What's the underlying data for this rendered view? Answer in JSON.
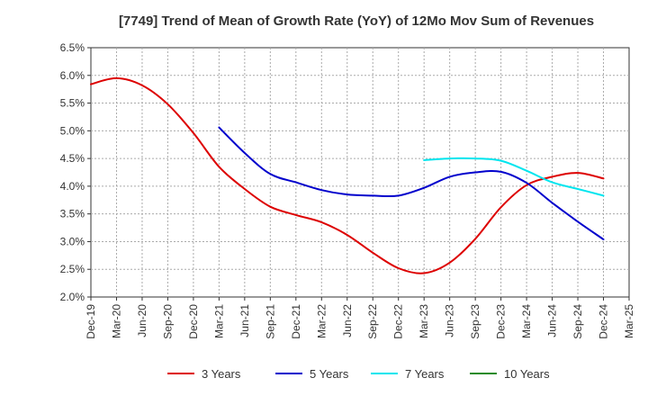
{
  "chart_data": {
    "type": "line",
    "title": "[7749]  Trend of Mean of Growth Rate (YoY) of 12Mo Mov Sum of Revenues",
    "xlabel": "",
    "ylabel": "",
    "ylim": [
      2.0,
      6.5
    ],
    "y_ticks": [
      "2.0%",
      "2.5%",
      "3.0%",
      "3.5%",
      "4.0%",
      "4.5%",
      "5.0%",
      "5.5%",
      "6.0%",
      "6.5%"
    ],
    "y_tick_values": [
      2.0,
      2.5,
      3.0,
      3.5,
      4.0,
      4.5,
      5.0,
      5.5,
      6.0,
      6.5
    ],
    "x_ticks": [
      "Dec-19",
      "Mar-20",
      "Jun-20",
      "Sep-20",
      "Dec-20",
      "Mar-21",
      "Jun-21",
      "Sep-21",
      "Dec-21",
      "Mar-22",
      "Jun-22",
      "Sep-22",
      "Dec-22",
      "Mar-23",
      "Jun-23",
      "Sep-23",
      "Dec-23",
      "Mar-24",
      "Jun-24",
      "Sep-24",
      "Dec-24",
      "Mar-25"
    ],
    "grid": true,
    "legend_position": "bottom",
    "series": [
      {
        "name": "3 Years",
        "color": "#dd0000",
        "points": [
          [
            0,
            5.84
          ],
          [
            1,
            5.95
          ],
          [
            2,
            5.82
          ],
          [
            3,
            5.48
          ],
          [
            4,
            4.96
          ],
          [
            5,
            4.35
          ],
          [
            6,
            3.95
          ],
          [
            7,
            3.63
          ],
          [
            8,
            3.48
          ],
          [
            9,
            3.35
          ],
          [
            10,
            3.12
          ],
          [
            11,
            2.8
          ],
          [
            12,
            2.52
          ],
          [
            13,
            2.43
          ],
          [
            14,
            2.62
          ],
          [
            15,
            3.05
          ],
          [
            16,
            3.62
          ],
          [
            17,
            4.02
          ],
          [
            18,
            4.17
          ],
          [
            19,
            4.24
          ],
          [
            20,
            4.14
          ]
        ]
      },
      {
        "name": "5 Years",
        "color": "#0000cc",
        "points": [
          [
            5,
            5.06
          ],
          [
            6,
            4.6
          ],
          [
            7,
            4.22
          ],
          [
            8,
            4.07
          ],
          [
            9,
            3.93
          ],
          [
            10,
            3.85
          ],
          [
            11,
            3.83
          ],
          [
            12,
            3.83
          ],
          [
            13,
            3.97
          ],
          [
            14,
            4.17
          ],
          [
            15,
            4.25
          ],
          [
            16,
            4.26
          ],
          [
            17,
            4.06
          ],
          [
            18,
            3.7
          ],
          [
            19,
            3.36
          ],
          [
            20,
            3.04
          ]
        ]
      },
      {
        "name": "7 Years",
        "color": "#00e5ee",
        "points": [
          [
            13,
            4.47
          ],
          [
            14,
            4.5
          ],
          [
            15,
            4.5
          ],
          [
            16,
            4.46
          ],
          [
            17,
            4.28
          ],
          [
            18,
            4.07
          ],
          [
            19,
            3.95
          ],
          [
            20,
            3.83
          ]
        ]
      },
      {
        "name": "10 Years",
        "color": "#228B22",
        "points": []
      }
    ]
  }
}
